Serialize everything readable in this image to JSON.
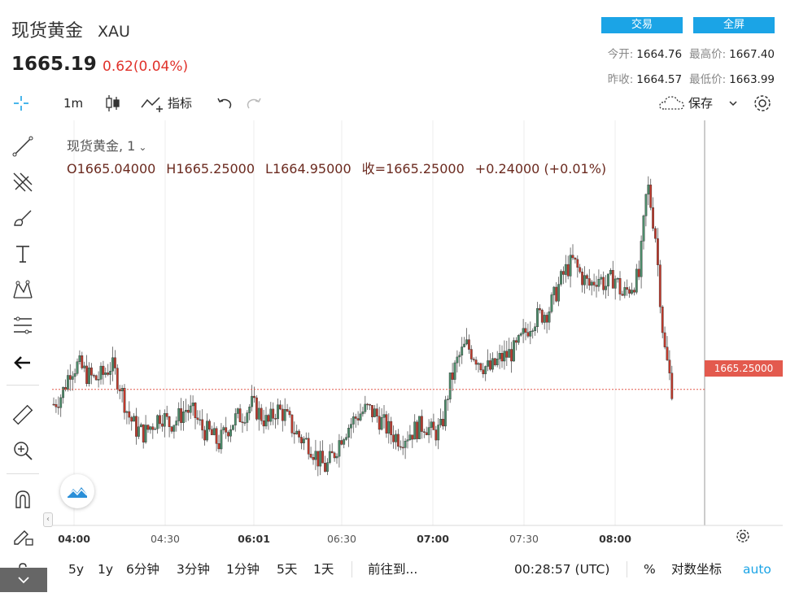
{
  "header": {
    "name": "现货黄金",
    "code": "XAU",
    "price": "1665.19",
    "change": "0.62(0.04%)",
    "trade_button": "交易",
    "fullscreen_button": "全屏",
    "stats": {
      "open_label": "今开:",
      "open": "1664.76",
      "high_label": "最高价:",
      "high": "1667.40",
      "prev_label": "昨收:",
      "prev": "1664.57",
      "low_label": "最低价:",
      "low": "1663.99"
    }
  },
  "toolbar": {
    "interval": "1m",
    "indicators": "指标",
    "save": "保存"
  },
  "legend": {
    "symbol": "现货黄金, 1",
    "open": "O1665.04000",
    "high": "H1665.25000",
    "low": "L1664.95000",
    "close": "收=1665.25000",
    "change": "+0.24000 (+0.01%)"
  },
  "price_tag": "1665.25000",
  "bottom_bar": {
    "ranges": [
      "5y",
      "1y",
      "6分钟",
      "3分钟",
      "1分钟",
      "5天",
      "1天"
    ],
    "goto": "前往到...",
    "clock": "00:28:57 (UTC)",
    "percent": "%",
    "log": "对数坐标",
    "auto": "auto"
  },
  "colors": {
    "up": "#4c8c6a",
    "down": "#c0392b",
    "accent": "#1ba4e6",
    "price_line": "#e35a4e"
  },
  "chart_data": {
    "type": "candlestick",
    "x_ticks": [
      {
        "label": "04:00",
        "bold": true
      },
      {
        "label": "04:30",
        "bold": false
      },
      {
        "label": "06:01",
        "bold": true
      },
      {
        "label": "06:30",
        "bold": false
      },
      {
        "label": "07:00",
        "bold": true
      },
      {
        "label": "07:30",
        "bold": false
      },
      {
        "label": "08:00",
        "bold": true
      }
    ],
    "last_price": 1665.25,
    "price_trend": [
      1665.1,
      1665.2,
      1665.45,
      1665.5,
      1665.4,
      1665.35,
      1665.4,
      1665.5,
      1665.3,
      1665.0,
      1664.85,
      1664.8,
      1664.9,
      1665.0,
      1664.9,
      1664.95,
      1665.05,
      1665.0,
      1664.85,
      1664.8,
      1664.7,
      1664.85,
      1664.95,
      1665.0,
      1665.1,
      1665.0,
      1664.9,
      1665.05,
      1665.0,
      1664.85,
      1664.75,
      1664.7,
      1664.55,
      1664.45,
      1664.6,
      1664.8,
      1664.9,
      1665.0,
      1665.05,
      1665.0,
      1664.9,
      1664.8,
      1664.75,
      1664.8,
      1664.85,
      1664.9,
      1664.8,
      1664.85,
      1665.3,
      1665.55,
      1665.7,
      1665.6,
      1665.5,
      1665.45,
      1665.55,
      1665.6,
      1665.65,
      1665.8,
      1665.95,
      1666.0,
      1666.05,
      1666.25,
      1666.45,
      1666.55,
      1666.4,
      1666.3,
      1666.4,
      1666.3,
      1666.4,
      1666.2,
      1666.3,
      1666.4,
      1667.35,
      1666.8,
      1665.7,
      1665.25
    ]
  }
}
